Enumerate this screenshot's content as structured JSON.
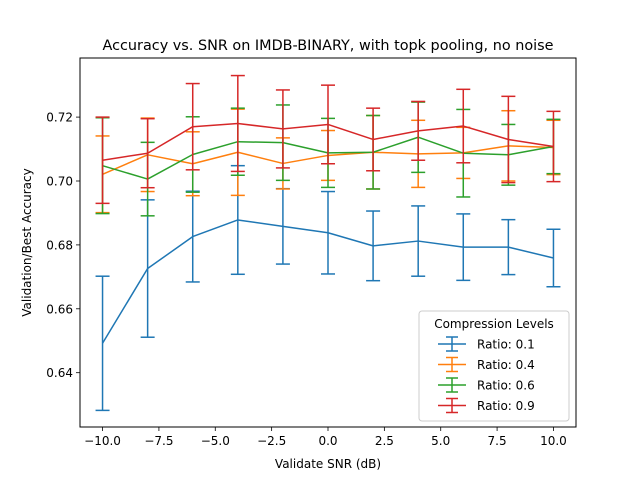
{
  "chart_data": {
    "type": "line",
    "title": "Accuracy vs. SNR on IMDB-BINARY, with topk pooling, no noise",
    "xlabel": "Validate SNR (dB)",
    "ylabel": "Validation/Best Accuracy",
    "xlim": [
      -11,
      11
    ],
    "ylim": [
      0.623,
      0.7385
    ],
    "x_ticks": [
      -10.0,
      -7.5,
      -5.0,
      -2.5,
      0.0,
      2.5,
      5.0,
      7.5,
      10.0
    ],
    "x_tick_labels": [
      "−10.0",
      "−7.5",
      "−5.0",
      "−2.5",
      "0.0",
      "2.5",
      "5.0",
      "7.5",
      "10.0"
    ],
    "y_ticks": [
      0.64,
      0.66,
      0.68,
      0.7,
      0.72
    ],
    "y_tick_labels": [
      "0.64",
      "0.66",
      "0.68",
      "0.70",
      "0.72"
    ],
    "grid": false,
    "legend": {
      "title": "Compression Levels",
      "placement": "lower-right"
    },
    "x": [
      -10,
      -8,
      -6,
      -4,
      -2,
      0,
      2,
      4,
      6,
      8,
      10
    ],
    "series": [
      {
        "name": "Ratio: 0.1",
        "color": "#1f77b4",
        "values": [
          0.6492,
          0.6726,
          0.6826,
          0.6878,
          0.6858,
          0.6838,
          0.6797,
          0.6812,
          0.6793,
          0.6793,
          0.6759
        ],
        "errors": [
          0.021,
          0.0215,
          0.0142,
          0.017,
          0.0118,
          0.0129,
          0.0109,
          0.011,
          0.0104,
          0.0086,
          0.009
        ]
      },
      {
        "name": "Ratio: 0.4",
        "color": "#ff7f0e",
        "values": [
          0.7021,
          0.7082,
          0.7054,
          0.709,
          0.7055,
          0.708,
          0.709,
          0.7085,
          0.7088,
          0.711,
          0.7105
        ],
        "errors": [
          0.012,
          0.0115,
          0.01,
          0.0135,
          0.008,
          0.0078,
          0.0115,
          0.0105,
          0.008,
          0.011,
          0.0085
        ]
      },
      {
        "name": "Ratio: 0.6",
        "color": "#2ca02c",
        "values": [
          0.7048,
          0.7006,
          0.7083,
          0.7123,
          0.712,
          0.7088,
          0.709,
          0.7137,
          0.7087,
          0.7082,
          0.7108
        ],
        "errors": [
          0.015,
          0.0115,
          0.0118,
          0.0105,
          0.0118,
          0.0108,
          0.0115,
          0.011,
          0.0137,
          0.0095,
          0.0085
        ]
      },
      {
        "name": "Ratio: 0.9",
        "color": "#d62728",
        "values": [
          0.7065,
          0.7087,
          0.717,
          0.718,
          0.7163,
          0.7177,
          0.713,
          0.7157,
          0.7172,
          0.713,
          0.7108
        ],
        "errors": [
          0.0135,
          0.0108,
          0.0135,
          0.015,
          0.0122,
          0.0123,
          0.0098,
          0.0092,
          0.0115,
          0.0135,
          0.011
        ]
      }
    ]
  }
}
